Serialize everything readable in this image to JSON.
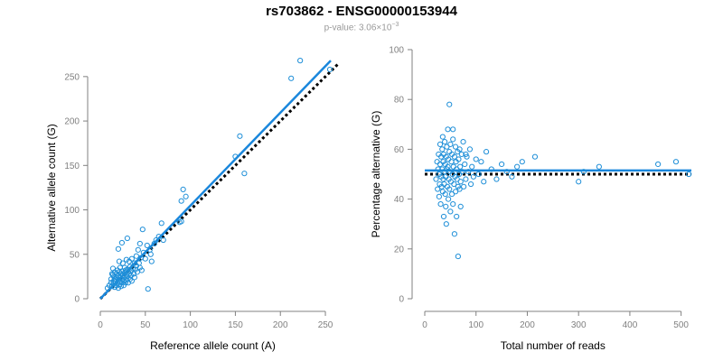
{
  "title": "rs703862 - ENSG00000153944",
  "subtitle": {
    "prefix": "p-value: 3.06×10",
    "exponent": "−3"
  },
  "colors": {
    "points": "#1f8fd8",
    "fit_line": "#1a87dc",
    "reference_line": "#000000",
    "axis": "#808080"
  },
  "chart_data": [
    {
      "type": "scatter",
      "xlabel": "Reference allele count (A)",
      "ylabel": "Alternative allele count (G)",
      "xlim": [
        0,
        260
      ],
      "ylim": [
        0,
        260
      ],
      "xticks": [
        0,
        50,
        100,
        150,
        200,
        250
      ],
      "yticks": [
        0,
        50,
        100,
        150,
        200,
        250
      ],
      "grid": false,
      "points": [
        [
          8,
          12
        ],
        [
          10,
          15
        ],
        [
          12,
          18
        ],
        [
          12,
          22
        ],
        [
          13,
          14
        ],
        [
          14,
          27
        ],
        [
          14,
          34
        ],
        [
          15,
          17
        ],
        [
          15,
          20
        ],
        [
          15,
          25
        ],
        [
          16,
          13
        ],
        [
          16,
          30
        ],
        [
          17,
          22
        ],
        [
          17,
          19
        ],
        [
          18,
          15
        ],
        [
          18,
          28
        ],
        [
          18,
          24
        ],
        [
          19,
          32
        ],
        [
          19,
          18
        ],
        [
          20,
          12
        ],
        [
          20,
          26
        ],
        [
          20,
          21
        ],
        [
          21,
          16
        ],
        [
          21,
          30
        ],
        [
          22,
          19
        ],
        [
          22,
          24
        ],
        [
          22,
          35
        ],
        [
          23,
          14
        ],
        [
          23,
          28
        ],
        [
          24,
          22
        ],
        [
          24,
          31
        ],
        [
          24,
          18
        ],
        [
          25,
          26
        ],
        [
          25,
          40
        ],
        [
          26,
          20
        ],
        [
          26,
          15
        ],
        [
          27,
          29
        ],
        [
          27,
          24
        ],
        [
          27,
          35
        ],
        [
          28,
          18
        ],
        [
          28,
          32
        ],
        [
          29,
          27
        ],
        [
          29,
          21
        ],
        [
          29,
          44
        ],
        [
          30,
          25
        ],
        [
          30,
          33
        ],
        [
          31,
          30
        ],
        [
          31,
          18
        ],
        [
          32,
          28
        ],
        [
          32,
          42
        ],
        [
          33,
          22
        ],
        [
          33,
          36
        ],
        [
          34,
          31
        ],
        [
          34,
          26
        ],
        [
          35,
          45
        ],
        [
          35,
          20
        ],
        [
          36,
          34
        ],
        [
          37,
          28
        ],
        [
          38,
          40
        ],
        [
          38,
          24
        ],
        [
          39,
          33
        ],
        [
          40,
          37
        ],
        [
          40,
          48
        ],
        [
          41,
          30
        ],
        [
          42,
          55
        ],
        [
          43,
          40
        ],
        [
          44,
          35
        ],
        [
          44,
          62
        ],
        [
          45,
          46
        ],
        [
          46,
          32
        ],
        [
          47,
          78
        ],
        [
          48,
          52
        ],
        [
          50,
          45
        ],
        [
          52,
          60
        ],
        [
          53,
          11
        ],
        [
          55,
          55
        ],
        [
          56,
          50
        ],
        [
          57,
          42
        ],
        [
          60,
          62
        ],
        [
          62,
          66
        ],
        [
          65,
          70
        ],
        [
          68,
          85
        ],
        [
          70,
          66
        ],
        [
          88,
          86
        ],
        [
          90,
          87
        ],
        [
          90,
          110
        ],
        [
          92,
          123
        ],
        [
          95,
          115
        ],
        [
          150,
          160
        ],
        [
          155,
          183
        ],
        [
          160,
          141
        ],
        [
          212,
          248
        ],
        [
          222,
          268
        ],
        [
          255,
          258
        ],
        [
          24,
          63
        ],
        [
          20,
          56
        ],
        [
          30,
          68
        ],
        [
          16,
          22
        ],
        [
          13,
          28
        ],
        [
          21,
          42
        ]
      ],
      "fit_line": {
        "x": [
          0,
          256
        ],
        "y": [
          0,
          268
        ]
      },
      "reference_line": {
        "x": [
          0,
          265
        ],
        "y": [
          0,
          265
        ]
      }
    },
    {
      "type": "scatter",
      "xlabel": "Total number of reads",
      "ylabel": "Percentage alternative (G)",
      "xlim": [
        0,
        520
      ],
      "ylim": [
        0,
        100
      ],
      "xticks": [
        0,
        100,
        200,
        300,
        400,
        500
      ],
      "yticks": [
        0,
        20,
        40,
        60,
        80,
        100
      ],
      "grid": false,
      "points": [
        [
          22,
          48
        ],
        [
          24,
          55
        ],
        [
          25,
          44
        ],
        [
          26,
          52
        ],
        [
          27,
          58
        ],
        [
          28,
          41
        ],
        [
          28,
          50
        ],
        [
          29,
          46
        ],
        [
          30,
          62
        ],
        [
          30,
          54
        ],
        [
          31,
          38
        ],
        [
          32,
          49
        ],
        [
          32,
          57
        ],
        [
          33,
          45
        ],
        [
          34,
          60
        ],
        [
          34,
          52
        ],
        [
          35,
          65
        ],
        [
          35,
          43
        ],
        [
          36,
          48
        ],
        [
          36,
          55
        ],
        [
          37,
          33
        ],
        [
          37,
          58
        ],
        [
          38,
          51
        ],
        [
          38,
          46
        ],
        [
          39,
          63
        ],
        [
          40,
          42
        ],
        [
          40,
          54
        ],
        [
          41,
          37
        ],
        [
          41,
          49
        ],
        [
          42,
          57
        ],
        [
          42,
          30
        ],
        [
          43,
          52
        ],
        [
          43,
          61
        ],
        [
          44,
          45
        ],
        [
          45,
          53
        ],
        [
          45,
          68
        ],
        [
          46,
          40
        ],
        [
          46,
          56
        ],
        [
          47,
          48
        ],
        [
          48,
          59
        ],
        [
          48,
          44
        ],
        [
          49,
          51
        ],
        [
          50,
          62
        ],
        [
          50,
          35
        ],
        [
          51,
          47
        ],
        [
          52,
          55
        ],
        [
          53,
          42
        ],
        [
          53,
          58
        ],
        [
          54,
          50
        ],
        [
          55,
          64
        ],
        [
          55,
          38
        ],
        [
          56,
          53
        ],
        [
          57,
          46
        ],
        [
          58,
          57
        ],
        [
          58,
          26
        ],
        [
          59,
          49
        ],
        [
          60,
          61
        ],
        [
          60,
          43
        ],
        [
          61,
          55
        ],
        [
          62,
          52
        ],
        [
          63,
          48
        ],
        [
          64,
          59
        ],
        [
          65,
          45
        ],
        [
          65,
          17
        ],
        [
          66,
          56
        ],
        [
          67,
          50
        ],
        [
          68,
          60
        ],
        [
          68,
          44
        ],
        [
          69,
          53
        ],
        [
          70,
          47
        ],
        [
          72,
          58
        ],
        [
          73,
          51
        ],
        [
          75,
          63
        ],
        [
          76,
          45
        ],
        [
          78,
          54
        ],
        [
          80,
          48
        ],
        [
          82,
          57
        ],
        [
          85,
          51
        ],
        [
          88,
          60
        ],
        [
          90,
          46
        ],
        [
          92,
          53
        ],
        [
          95,
          49
        ],
        [
          100,
          56
        ],
        [
          105,
          50
        ],
        [
          110,
          55
        ],
        [
          115,
          47
        ],
        [
          120,
          59
        ],
        [
          130,
          52
        ],
        [
          140,
          48
        ],
        [
          150,
          54
        ],
        [
          160,
          51
        ],
        [
          170,
          49
        ],
        [
          180,
          53
        ],
        [
          190,
          55
        ],
        [
          215,
          57
        ],
        [
          300,
          47
        ],
        [
          310,
          51
        ],
        [
          340,
          53
        ],
        [
          455,
          54
        ],
        [
          490,
          55
        ],
        [
          515,
          50
        ],
        [
          48,
          78
        ],
        [
          55,
          68
        ],
        [
          62,
          33
        ],
        [
          70,
          37
        ],
        [
          80,
          58
        ]
      ],
      "fit_line": {
        "x": [
          0,
          520
        ],
        "y": [
          51.5,
          51.5
        ]
      },
      "reference_line": {
        "x": [
          0,
          520
        ],
        "y": [
          50,
          50
        ]
      }
    }
  ]
}
